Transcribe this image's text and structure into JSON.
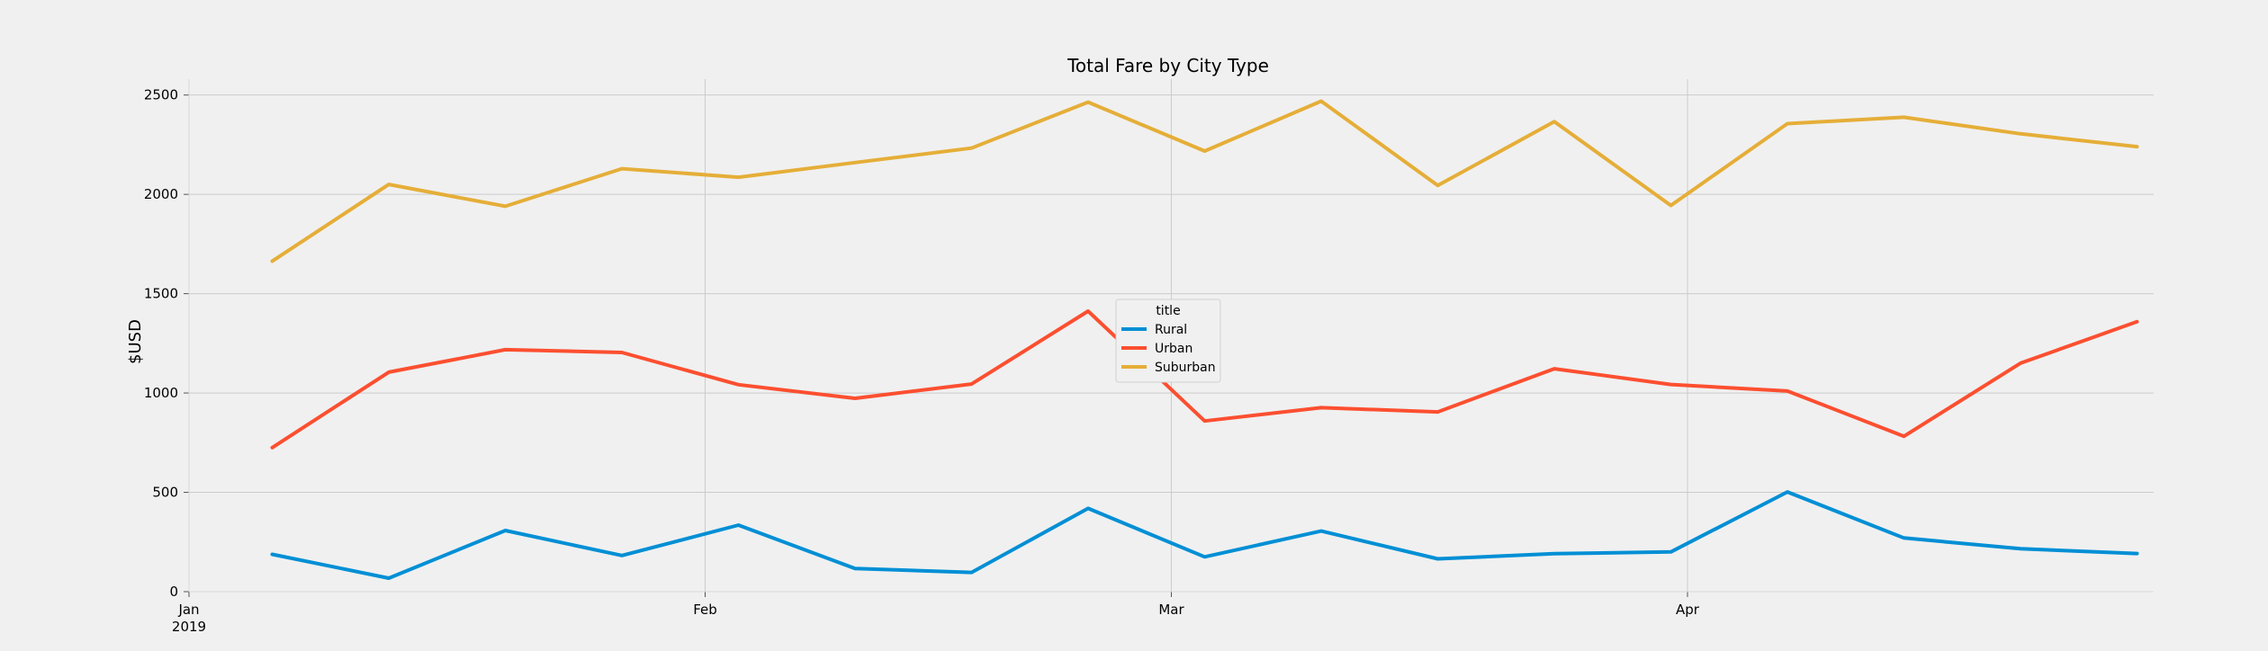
{
  "chart_data": {
    "type": "line",
    "title": "Total Fare by City Type",
    "xlabel": "",
    "ylabel": "$USD",
    "xlim": [
      "2019-01-01",
      "2019-04-29"
    ],
    "ylim": [
      0,
      2580
    ],
    "yticks": [
      0,
      500,
      1000,
      1500,
      2000,
      2500
    ],
    "ytick_labels": [
      "0",
      "500",
      "1000",
      "1500",
      "2000",
      "2500"
    ],
    "xticks": [
      {
        "date": "2019-01-01",
        "label": "Jan",
        "sublabel": "2019"
      },
      {
        "date": "2019-02-01",
        "label": "Feb",
        "sublabel": ""
      },
      {
        "date": "2019-03-01",
        "label": "Mar",
        "sublabel": ""
      },
      {
        "date": "2019-04-01",
        "label": "Apr",
        "sublabel": ""
      }
    ],
    "grid": true,
    "legend": {
      "title": "title",
      "placement": "center"
    },
    "x": [
      "2019-01-06",
      "2019-01-13",
      "2019-01-20",
      "2019-01-27",
      "2019-02-03",
      "2019-02-10",
      "2019-02-17",
      "2019-02-24",
      "2019-03-03",
      "2019-03-10",
      "2019-03-17",
      "2019-03-24",
      "2019-03-31",
      "2019-04-07",
      "2019-04-14",
      "2019-04-21",
      "2019-04-28"
    ],
    "series": [
      {
        "name": "Rural",
        "color": "#008fd5",
        "values": [
          188,
          68,
          308,
          182,
          335,
          117,
          97,
          419,
          175,
          305,
          165,
          191,
          200,
          502,
          270,
          216,
          192
        ]
      },
      {
        "name": "Urban",
        "color": "#fc4f30",
        "values": [
          725,
          1105,
          1218,
          1204,
          1042,
          973,
          1045,
          1412,
          859,
          926,
          905,
          1122,
          1043,
          1010,
          782,
          1150,
          1359
        ]
      },
      {
        "name": "Suburban",
        "color": "#e5ae38",
        "values": [
          1664,
          2050,
          1940,
          2129,
          2086,
          2160,
          2233,
          2464,
          2218,
          2469,
          2045,
          2366,
          1944,
          2356,
          2388,
          2305,
          2240
        ]
      }
    ]
  }
}
